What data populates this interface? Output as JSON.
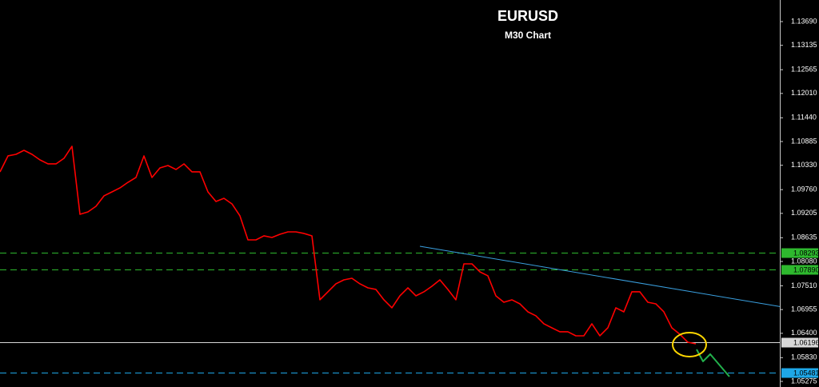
{
  "chart_data": {
    "type": "line",
    "title": "EURUSD",
    "subtitle": "M30 Chart",
    "color": "#ff0000",
    "values": [
      1.10175,
      1.10549,
      1.10586,
      1.10679,
      1.10586,
      1.10455,
      1.10362,
      1.10362,
      1.10492,
      1.10773,
      1.09183,
      1.0924,
      1.0937,
      1.09614,
      1.09707,
      1.09801,
      1.09931,
      1.10044,
      1.10549,
      1.10044,
      1.10268,
      1.10324,
      1.10231,
      1.10362,
      1.10175,
      1.10175,
      1.09707,
      1.09483,
      1.09557,
      1.09427,
      1.09146,
      1.08585,
      1.08585,
      1.08679,
      1.08641,
      1.08716,
      1.08772,
      1.08772,
      1.08735,
      1.08679,
      1.07183,
      1.0737,
      1.07557,
      1.0765,
      1.07687,
      1.07557,
      1.07463,
      1.07426,
      1.07183,
      1.06996,
      1.07276,
      1.07463,
      1.07276,
      1.0737,
      1.075,
      1.0765,
      1.07426,
      1.07183,
      1.08024,
      1.08024,
      1.07837,
      1.07744,
      1.07276,
      1.07126,
      1.07183,
      1.07089,
      1.06902,
      1.06809,
      1.06622,
      1.06528,
      1.06435,
      1.06435,
      1.06341,
      1.06341,
      1.06622,
      1.06341,
      1.06528,
      1.06996,
      1.06902,
      1.0737,
      1.0737,
      1.07126,
      1.07089,
      1.06902,
      1.06528,
      1.06378,
      1.06191,
      1.06154
    ],
    "xlim": [
      0,
      97.5
    ],
    "ylim": [
      1.05144,
      1.14195
    ],
    "yticks": [
      {
        "value": 1.1369,
        "label": "1.13690"
      },
      1.13135,
      1.12565,
      {
        "value": 1.1201,
        "label": "1.12010"
      },
      {
        "value": 1.1144,
        "label": "1.11440"
      },
      1.10885,
      {
        "value": 1.1033,
        "label": "1.10330"
      },
      {
        "value": 1.0976,
        "label": "1.09760"
      },
      1.09205,
      1.08635,
      {
        "value": 1.0808,
        "label": "1.08080"
      },
      {
        "value": 1.0751,
        "label": "1.07510"
      },
      1.06955,
      {
        "value": 1.064,
        "label": "1.06400"
      },
      {
        "value": 1.0583,
        "label": "1.05830"
      },
      1.05275
    ],
    "levels": [
      {
        "value": 1.08293,
        "color": "#2eb82e",
        "dashed": true
      },
      {
        "value": 1.0789,
        "label": "1.07890",
        "color": "#2eb82e",
        "dashed": true
      },
      {
        "value": 1.06196,
        "color": "#d8d8d8",
        "dashed": false
      },
      {
        "value": 1.05481,
        "color": "#1ea7e8",
        "dashed": true
      }
    ],
    "trendline": {
      "x": [
        52.5,
        97.5
      ],
      "values": [
        1.08435,
        1.07026
      ],
      "color": "#3aa0e0"
    },
    "projection": {
      "x": [
        87.1,
        87.9,
        88.8,
        91.2
      ],
      "values": [
        1.06023,
        1.05743,
        1.05911,
        1.05387
      ],
      "color": "#22b14c"
    }
  }
}
